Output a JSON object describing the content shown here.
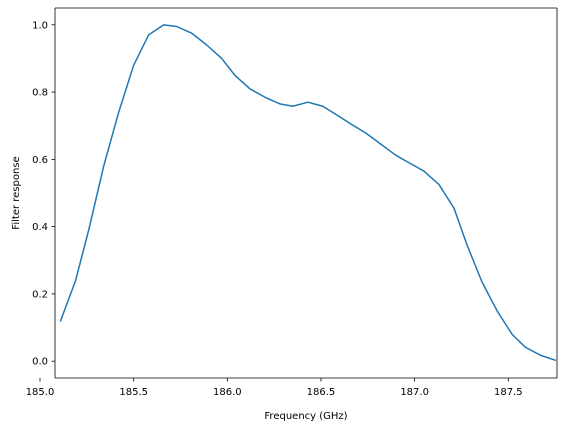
{
  "chart_data": {
    "type": "line",
    "title": "",
    "xlabel": "Frequency (GHz)",
    "ylabel": "Filter response",
    "xlim": [
      185.08,
      187.76
    ],
    "ylim": [
      -0.05,
      1.05
    ],
    "xticks": [
      185.0,
      185.5,
      186.0,
      186.5,
      187.0,
      187.5
    ],
    "xtick_labels": [
      "185.0",
      "185.5",
      "186.0",
      "186.5",
      "187.0",
      "187.5"
    ],
    "yticks": [
      0.0,
      0.2,
      0.4,
      0.6,
      0.8,
      1.0
    ],
    "ytick_labels": [
      "0.0",
      "0.2",
      "0.4",
      "0.6",
      "0.8",
      "1.0"
    ],
    "grid": false,
    "series": [
      {
        "color": "#1f77b4",
        "x": [
          185.11,
          185.19,
          185.26,
          185.34,
          185.42,
          185.5,
          185.58,
          185.66,
          185.73,
          185.81,
          185.89,
          185.97,
          186.04,
          186.12,
          186.2,
          186.28,
          186.35,
          186.43,
          186.51,
          186.59,
          186.66,
          186.74,
          186.82,
          186.9,
          186.97,
          187.05,
          187.13,
          187.21,
          187.28,
          187.36,
          187.44,
          187.52,
          187.59,
          187.67,
          187.75
        ],
        "y": [
          0.12,
          0.24,
          0.39,
          0.58,
          0.74,
          0.88,
          0.97,
          1.0,
          0.995,
          0.975,
          0.94,
          0.9,
          0.85,
          0.81,
          0.785,
          0.765,
          0.758,
          0.77,
          0.758,
          0.73,
          0.705,
          0.678,
          0.645,
          0.612,
          0.59,
          0.565,
          0.525,
          0.455,
          0.345,
          0.235,
          0.15,
          0.08,
          0.042,
          0.018,
          0.003
        ]
      }
    ]
  }
}
